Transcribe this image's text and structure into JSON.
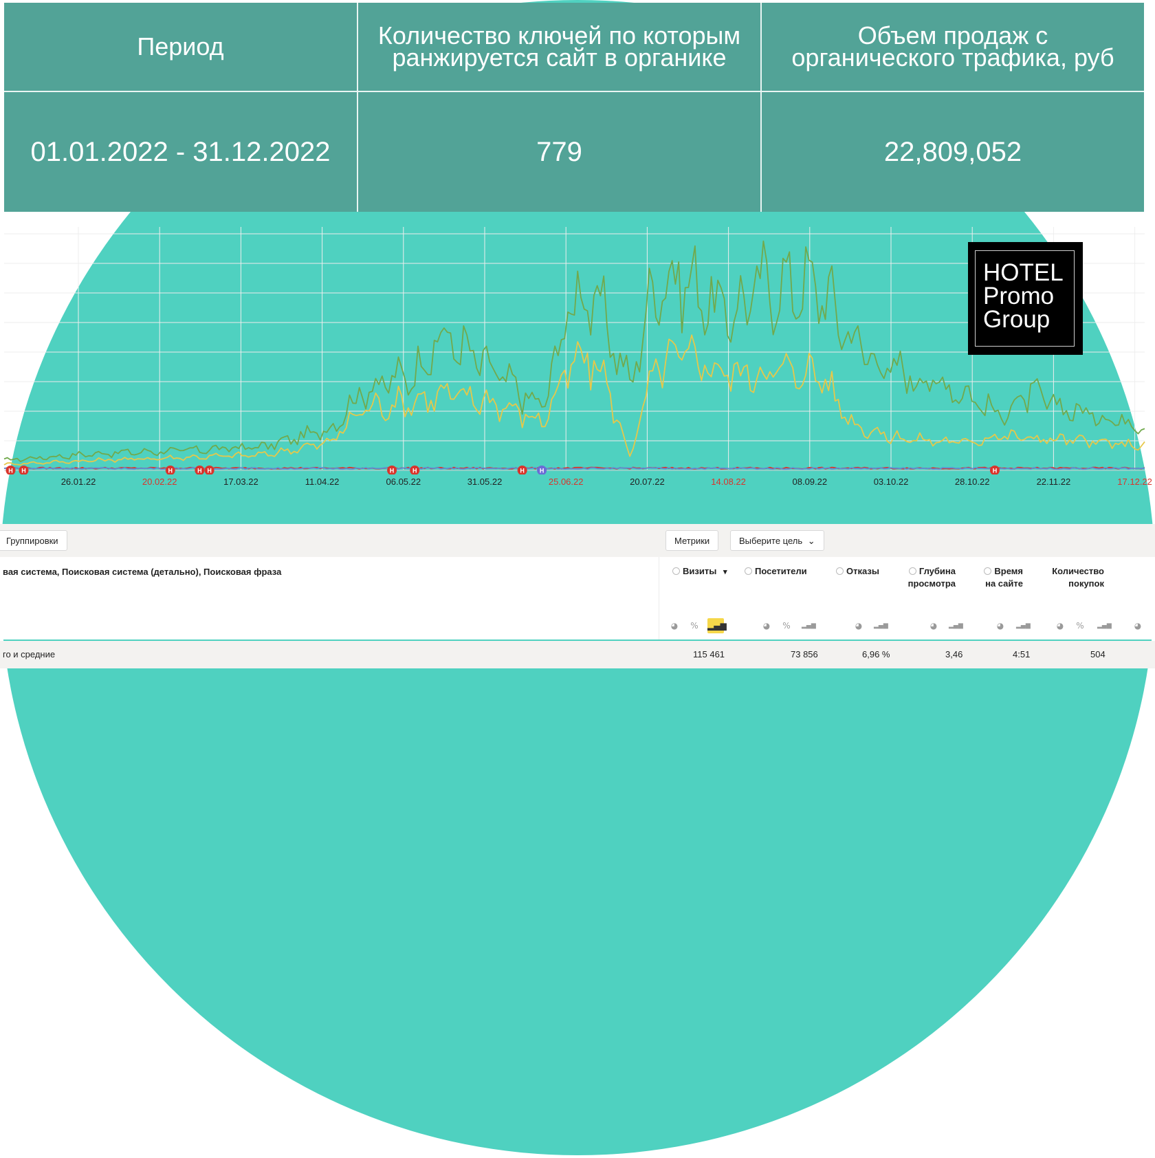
{
  "summary": {
    "headers": [
      "Период",
      "Количество ключей по которым ранжируется сайт в органике",
      "Объем продаж с органического трафика, руб"
    ],
    "values": [
      "01.01.2022 - 31.12.2022",
      "779",
      "22,809,052"
    ],
    "color": "#52a397"
  },
  "logo": {
    "text": "HOTEL Promo Group",
    "dot_color": "#4fd1c0"
  },
  "chart_data": {
    "type": "line",
    "x_ticks": [
      "26.01.22",
      "20.02.22",
      "17.03.22",
      "11.04.22",
      "06.05.22",
      "31.05.22",
      "25.06.22",
      "20.07.22",
      "14.08.22",
      "08.09.22",
      "03.10.22",
      "28.10.22",
      "22.11.22",
      "17.12.22"
    ],
    "holiday_ticks": [
      "20.02.22",
      "25.06.22",
      "14.08.22",
      "17.12.22"
    ],
    "grid": true,
    "series": [
      {
        "color": "#71a94c",
        "anchors": [
          [
            0,
            7
          ],
          [
            30,
            12
          ],
          [
            55,
            14
          ],
          [
            80,
            17
          ],
          [
            100,
            30
          ],
          [
            110,
            58
          ],
          [
            125,
            70
          ],
          [
            135,
            98
          ],
          [
            150,
            72
          ],
          [
            165,
            45
          ],
          [
            175,
            130
          ],
          [
            183,
            118
          ],
          [
            192,
            62
          ],
          [
            200,
            140
          ],
          [
            210,
            138
          ],
          [
            222,
            112
          ],
          [
            232,
            135
          ],
          [
            250,
            135
          ],
          [
            260,
            97
          ],
          [
            270,
            75
          ],
          [
            280,
            68
          ],
          [
            294,
            58
          ],
          [
            305,
            40
          ],
          [
            315,
            55
          ],
          [
            325,
            45
          ],
          [
            335,
            40
          ],
          [
            345,
            35
          ]
        ]
      },
      {
        "color": "#e6c84a",
        "anchors": [
          [
            0,
            4
          ],
          [
            30,
            7
          ],
          [
            55,
            9
          ],
          [
            80,
            11
          ],
          [
            100,
            20
          ],
          [
            110,
            45
          ],
          [
            125,
            50
          ],
          [
            135,
            55
          ],
          [
            150,
            50
          ],
          [
            165,
            35
          ],
          [
            175,
            80
          ],
          [
            183,
            75
          ],
          [
            192,
            10
          ],
          [
            200,
            75
          ],
          [
            210,
            85
          ],
          [
            222,
            70
          ],
          [
            232,
            72
          ],
          [
            250,
            72
          ],
          [
            260,
            35
          ],
          [
            270,
            25
          ],
          [
            280,
            22
          ],
          [
            294,
            20
          ],
          [
            305,
            25
          ],
          [
            315,
            23
          ],
          [
            325,
            22
          ],
          [
            335,
            20
          ],
          [
            345,
            18
          ]
        ]
      },
      {
        "color": "#d9342b",
        "anchors": [
          [
            0,
            0.5
          ],
          [
            345,
            0.5
          ]
        ]
      },
      {
        "color": "#5b8fd6",
        "anchors": [
          [
            0,
            0.3
          ],
          [
            345,
            0.3
          ]
        ]
      }
    ],
    "markers": [
      {
        "day": 2,
        "label": "Н",
        "color": "#d9342b"
      },
      {
        "day": 6,
        "label": "Н",
        "color": "#d9342b"
      },
      {
        "day": 51,
        "label": "Н",
        "color": "#d9342b"
      },
      {
        "day": 60,
        "label": "Н",
        "color": "#d9342b"
      },
      {
        "day": 63,
        "label": "Н",
        "color": "#d9342b"
      },
      {
        "day": 119,
        "label": "Н",
        "color": "#d9342b"
      },
      {
        "day": 126,
        "label": "Н",
        "color": "#d9342b"
      },
      {
        "day": 159,
        "label": "Н",
        "color": "#d9342b"
      },
      {
        "day": 165,
        "label": "Н",
        "color": "#6b6bd6"
      },
      {
        "day": 304,
        "label": "Н",
        "color": "#d9342b"
      }
    ]
  },
  "toolbar": {
    "groupings_label": "Группировки",
    "metrics_label": "Метрики",
    "goal_label": "Выберите цель"
  },
  "table": {
    "dimensions": "вая система, Поисковая система (детально), Поисковая фраза",
    "columns": [
      {
        "label": "Визиты",
        "sort": "▾"
      },
      {
        "label": "Посетители"
      },
      {
        "label": "Отказы"
      },
      {
        "label1": "Глубина",
        "label2": "просмотра"
      },
      {
        "label1": "Время",
        "label2": "на сайте"
      },
      {
        "label1": "Количество",
        "label2": "покупок"
      }
    ],
    "totals_label": "го и средние",
    "totals": [
      "115 461",
      "73 856",
      "6,96 %",
      "3,46",
      "4:51",
      "504"
    ]
  }
}
